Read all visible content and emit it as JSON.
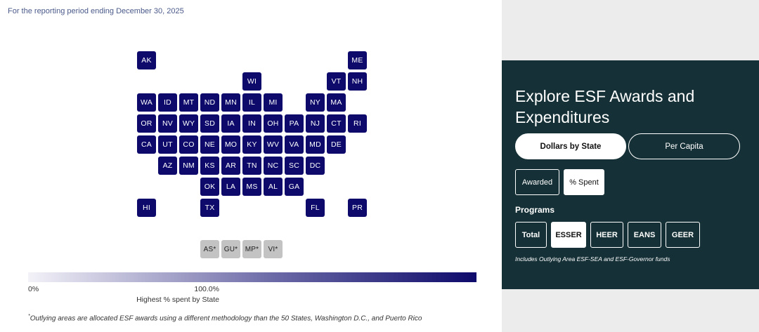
{
  "period_text": "For the reporting period ending December 30, 2025",
  "map": {
    "states": [
      {
        "abbr": "AK",
        "value_pct": 100,
        "r": 0,
        "c": 0
      },
      {
        "abbr": "ME",
        "value_pct": 100,
        "r": 0,
        "c": 10
      },
      {
        "abbr": "WI",
        "value_pct": 100,
        "r": 1,
        "c": 5
      },
      {
        "abbr": "VT",
        "value_pct": 100,
        "r": 1,
        "c": 9
      },
      {
        "abbr": "NH",
        "value_pct": 100,
        "r": 1,
        "c": 10
      },
      {
        "abbr": "WA",
        "value_pct": 100,
        "r": 2,
        "c": 0
      },
      {
        "abbr": "ID",
        "value_pct": 100,
        "r": 2,
        "c": 1
      },
      {
        "abbr": "MT",
        "value_pct": 100,
        "r": 2,
        "c": 2
      },
      {
        "abbr": "ND",
        "value_pct": 100,
        "r": 2,
        "c": 3
      },
      {
        "abbr": "MN",
        "value_pct": 100,
        "r": 2,
        "c": 4
      },
      {
        "abbr": "IL",
        "value_pct": 100,
        "r": 2,
        "c": 5
      },
      {
        "abbr": "MI",
        "value_pct": 100,
        "r": 2,
        "c": 6
      },
      {
        "abbr": "NY",
        "value_pct": 100,
        "r": 2,
        "c": 8
      },
      {
        "abbr": "MA",
        "value_pct": 100,
        "r": 2,
        "c": 9
      },
      {
        "abbr": "OR",
        "value_pct": 100,
        "r": 3,
        "c": 0
      },
      {
        "abbr": "NV",
        "value_pct": 100,
        "r": 3,
        "c": 1
      },
      {
        "abbr": "WY",
        "value_pct": 100,
        "r": 3,
        "c": 2
      },
      {
        "abbr": "SD",
        "value_pct": 100,
        "r": 3,
        "c": 3
      },
      {
        "abbr": "IA",
        "value_pct": 100,
        "r": 3,
        "c": 4
      },
      {
        "abbr": "IN",
        "value_pct": 100,
        "r": 3,
        "c": 5
      },
      {
        "abbr": "OH",
        "value_pct": 100,
        "r": 3,
        "c": 6
      },
      {
        "abbr": "PA",
        "value_pct": 100,
        "r": 3,
        "c": 7
      },
      {
        "abbr": "NJ",
        "value_pct": 100,
        "r": 3,
        "c": 8
      },
      {
        "abbr": "CT",
        "value_pct": 100,
        "r": 3,
        "c": 9
      },
      {
        "abbr": "RI",
        "value_pct": 100,
        "r": 3,
        "c": 10
      },
      {
        "abbr": "CA",
        "value_pct": 100,
        "r": 4,
        "c": 0
      },
      {
        "abbr": "UT",
        "value_pct": 100,
        "r": 4,
        "c": 1
      },
      {
        "abbr": "CO",
        "value_pct": 100,
        "r": 4,
        "c": 2
      },
      {
        "abbr": "NE",
        "value_pct": 100,
        "r": 4,
        "c": 3
      },
      {
        "abbr": "MO",
        "value_pct": 100,
        "r": 4,
        "c": 4
      },
      {
        "abbr": "KY",
        "value_pct": 100,
        "r": 4,
        "c": 5
      },
      {
        "abbr": "WV",
        "value_pct": 100,
        "r": 4,
        "c": 6
      },
      {
        "abbr": "VA",
        "value_pct": 100,
        "r": 4,
        "c": 7
      },
      {
        "abbr": "MD",
        "value_pct": 100,
        "r": 4,
        "c": 8
      },
      {
        "abbr": "DE",
        "value_pct": 100,
        "r": 4,
        "c": 9
      },
      {
        "abbr": "AZ",
        "value_pct": 100,
        "r": 5,
        "c": 1
      },
      {
        "abbr": "NM",
        "value_pct": 100,
        "r": 5,
        "c": 2
      },
      {
        "abbr": "KS",
        "value_pct": 100,
        "r": 5,
        "c": 3
      },
      {
        "abbr": "AR",
        "value_pct": 100,
        "r": 5,
        "c": 4
      },
      {
        "abbr": "TN",
        "value_pct": 100,
        "r": 5,
        "c": 5
      },
      {
        "abbr": "NC",
        "value_pct": 100,
        "r": 5,
        "c": 6
      },
      {
        "abbr": "SC",
        "value_pct": 100,
        "r": 5,
        "c": 7
      },
      {
        "abbr": "DC",
        "value_pct": 100,
        "r": 5,
        "c": 8
      },
      {
        "abbr": "OK",
        "value_pct": 100,
        "r": 6,
        "c": 3
      },
      {
        "abbr": "LA",
        "value_pct": 100,
        "r": 6,
        "c": 4
      },
      {
        "abbr": "MS",
        "value_pct": 100,
        "r": 6,
        "c": 5
      },
      {
        "abbr": "AL",
        "value_pct": 100,
        "r": 6,
        "c": 6
      },
      {
        "abbr": "GA",
        "value_pct": 100,
        "r": 6,
        "c": 7
      },
      {
        "abbr": "HI",
        "value_pct": 100,
        "r": 7,
        "c": 0
      },
      {
        "abbr": "TX",
        "value_pct": 100,
        "r": 7,
        "c": 3
      },
      {
        "abbr": "FL",
        "value_pct": 100,
        "r": 7,
        "c": 8
      },
      {
        "abbr": "PR",
        "value_pct": 100,
        "r": 7,
        "c": 10
      }
    ],
    "outlying": [
      {
        "abbr": "AS*",
        "c": 3
      },
      {
        "abbr": "GU*",
        "c": 4
      },
      {
        "abbr": "MP*",
        "c": 5
      },
      {
        "abbr": "VI*",
        "c": 6
      }
    ]
  },
  "legend": {
    "min_label": "0%",
    "max_label": "100.0%",
    "title": "Highest % spent by State",
    "color_low": "#f3f2f8",
    "color_high": "#0d0a6b"
  },
  "footnote": {
    "marker": "*",
    "text": "Outlying areas are allocated ESF awards using a different methodology than the 50 States, Washington D.C., and Puerto Rico"
  },
  "panel": {
    "title": "Explore ESF Awards and Expenditures",
    "bg_color": "#153036",
    "view_toggle": [
      {
        "label": "Dollars by State",
        "active": true
      },
      {
        "label": "Per Capita",
        "active": false
      }
    ],
    "metric_toggle": [
      {
        "label": "Awarded",
        "active": false
      },
      {
        "label": "% Spent",
        "active": true
      }
    ],
    "programs_label": "Programs",
    "programs": [
      {
        "label": "Total",
        "active": false
      },
      {
        "label": "ESSER",
        "active": true
      },
      {
        "label": "HEER",
        "active": false
      },
      {
        "label": "EANS",
        "active": false
      },
      {
        "label": "GEER",
        "active": false
      }
    ],
    "note": "Includes Outlying Area ESF-SEA and ESF-Governor funds"
  }
}
